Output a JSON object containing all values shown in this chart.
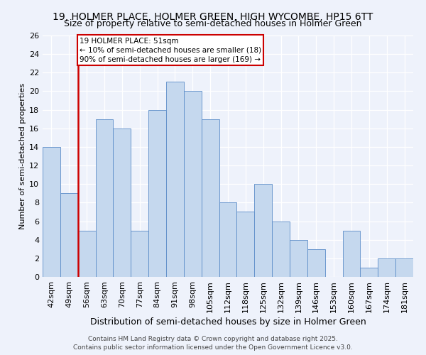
{
  "title": "19, HOLMER PLACE, HOLMER GREEN, HIGH WYCOMBE, HP15 6TT",
  "subtitle": "Size of property relative to semi-detached houses in Holmer Green",
  "xlabel": "Distribution of semi-detached houses by size in Holmer Green",
  "ylabel": "Number of semi-detached properties",
  "categories": [
    "42sqm",
    "49sqm",
    "56sqm",
    "63sqm",
    "70sqm",
    "77sqm",
    "84sqm",
    "91sqm",
    "98sqm",
    "105sqm",
    "112sqm",
    "118sqm",
    "125sqm",
    "132sqm",
    "139sqm",
    "146sqm",
    "153sqm",
    "160sqm",
    "167sqm",
    "174sqm",
    "181sqm"
  ],
  "values": [
    14,
    9,
    5,
    17,
    16,
    5,
    18,
    21,
    20,
    17,
    8,
    7,
    10,
    6,
    4,
    3,
    0,
    5,
    1,
    2,
    2
  ],
  "bar_color": "#c5d8ee",
  "bar_edge_color": "#5b8cc8",
  "property_line_x": 1.5,
  "annotation_title": "19 HOLMER PLACE: 51sqm",
  "annotation_line1": "← 10% of semi-detached houses are smaller (18)",
  "annotation_line2": "90% of semi-detached houses are larger (169) →",
  "annotation_box_color": "#ffffff",
  "annotation_box_edge": "#cc0000",
  "vline_color": "#cc0000",
  "ylim": [
    0,
    26
  ],
  "yticks": [
    0,
    2,
    4,
    6,
    8,
    10,
    12,
    14,
    16,
    18,
    20,
    22,
    24,
    26
  ],
  "footer_line1": "Contains HM Land Registry data © Crown copyright and database right 2025.",
  "footer_line2": "Contains public sector information licensed under the Open Government Licence v3.0.",
  "background_color": "#eef2fb",
  "grid_color": "#ffffff",
  "title_fontsize": 10,
  "subtitle_fontsize": 9,
  "ylabel_fontsize": 8,
  "xlabel_fontsize": 9,
  "tick_fontsize": 8,
  "annot_fontsize": 7.5,
  "footer_fontsize": 6.5
}
